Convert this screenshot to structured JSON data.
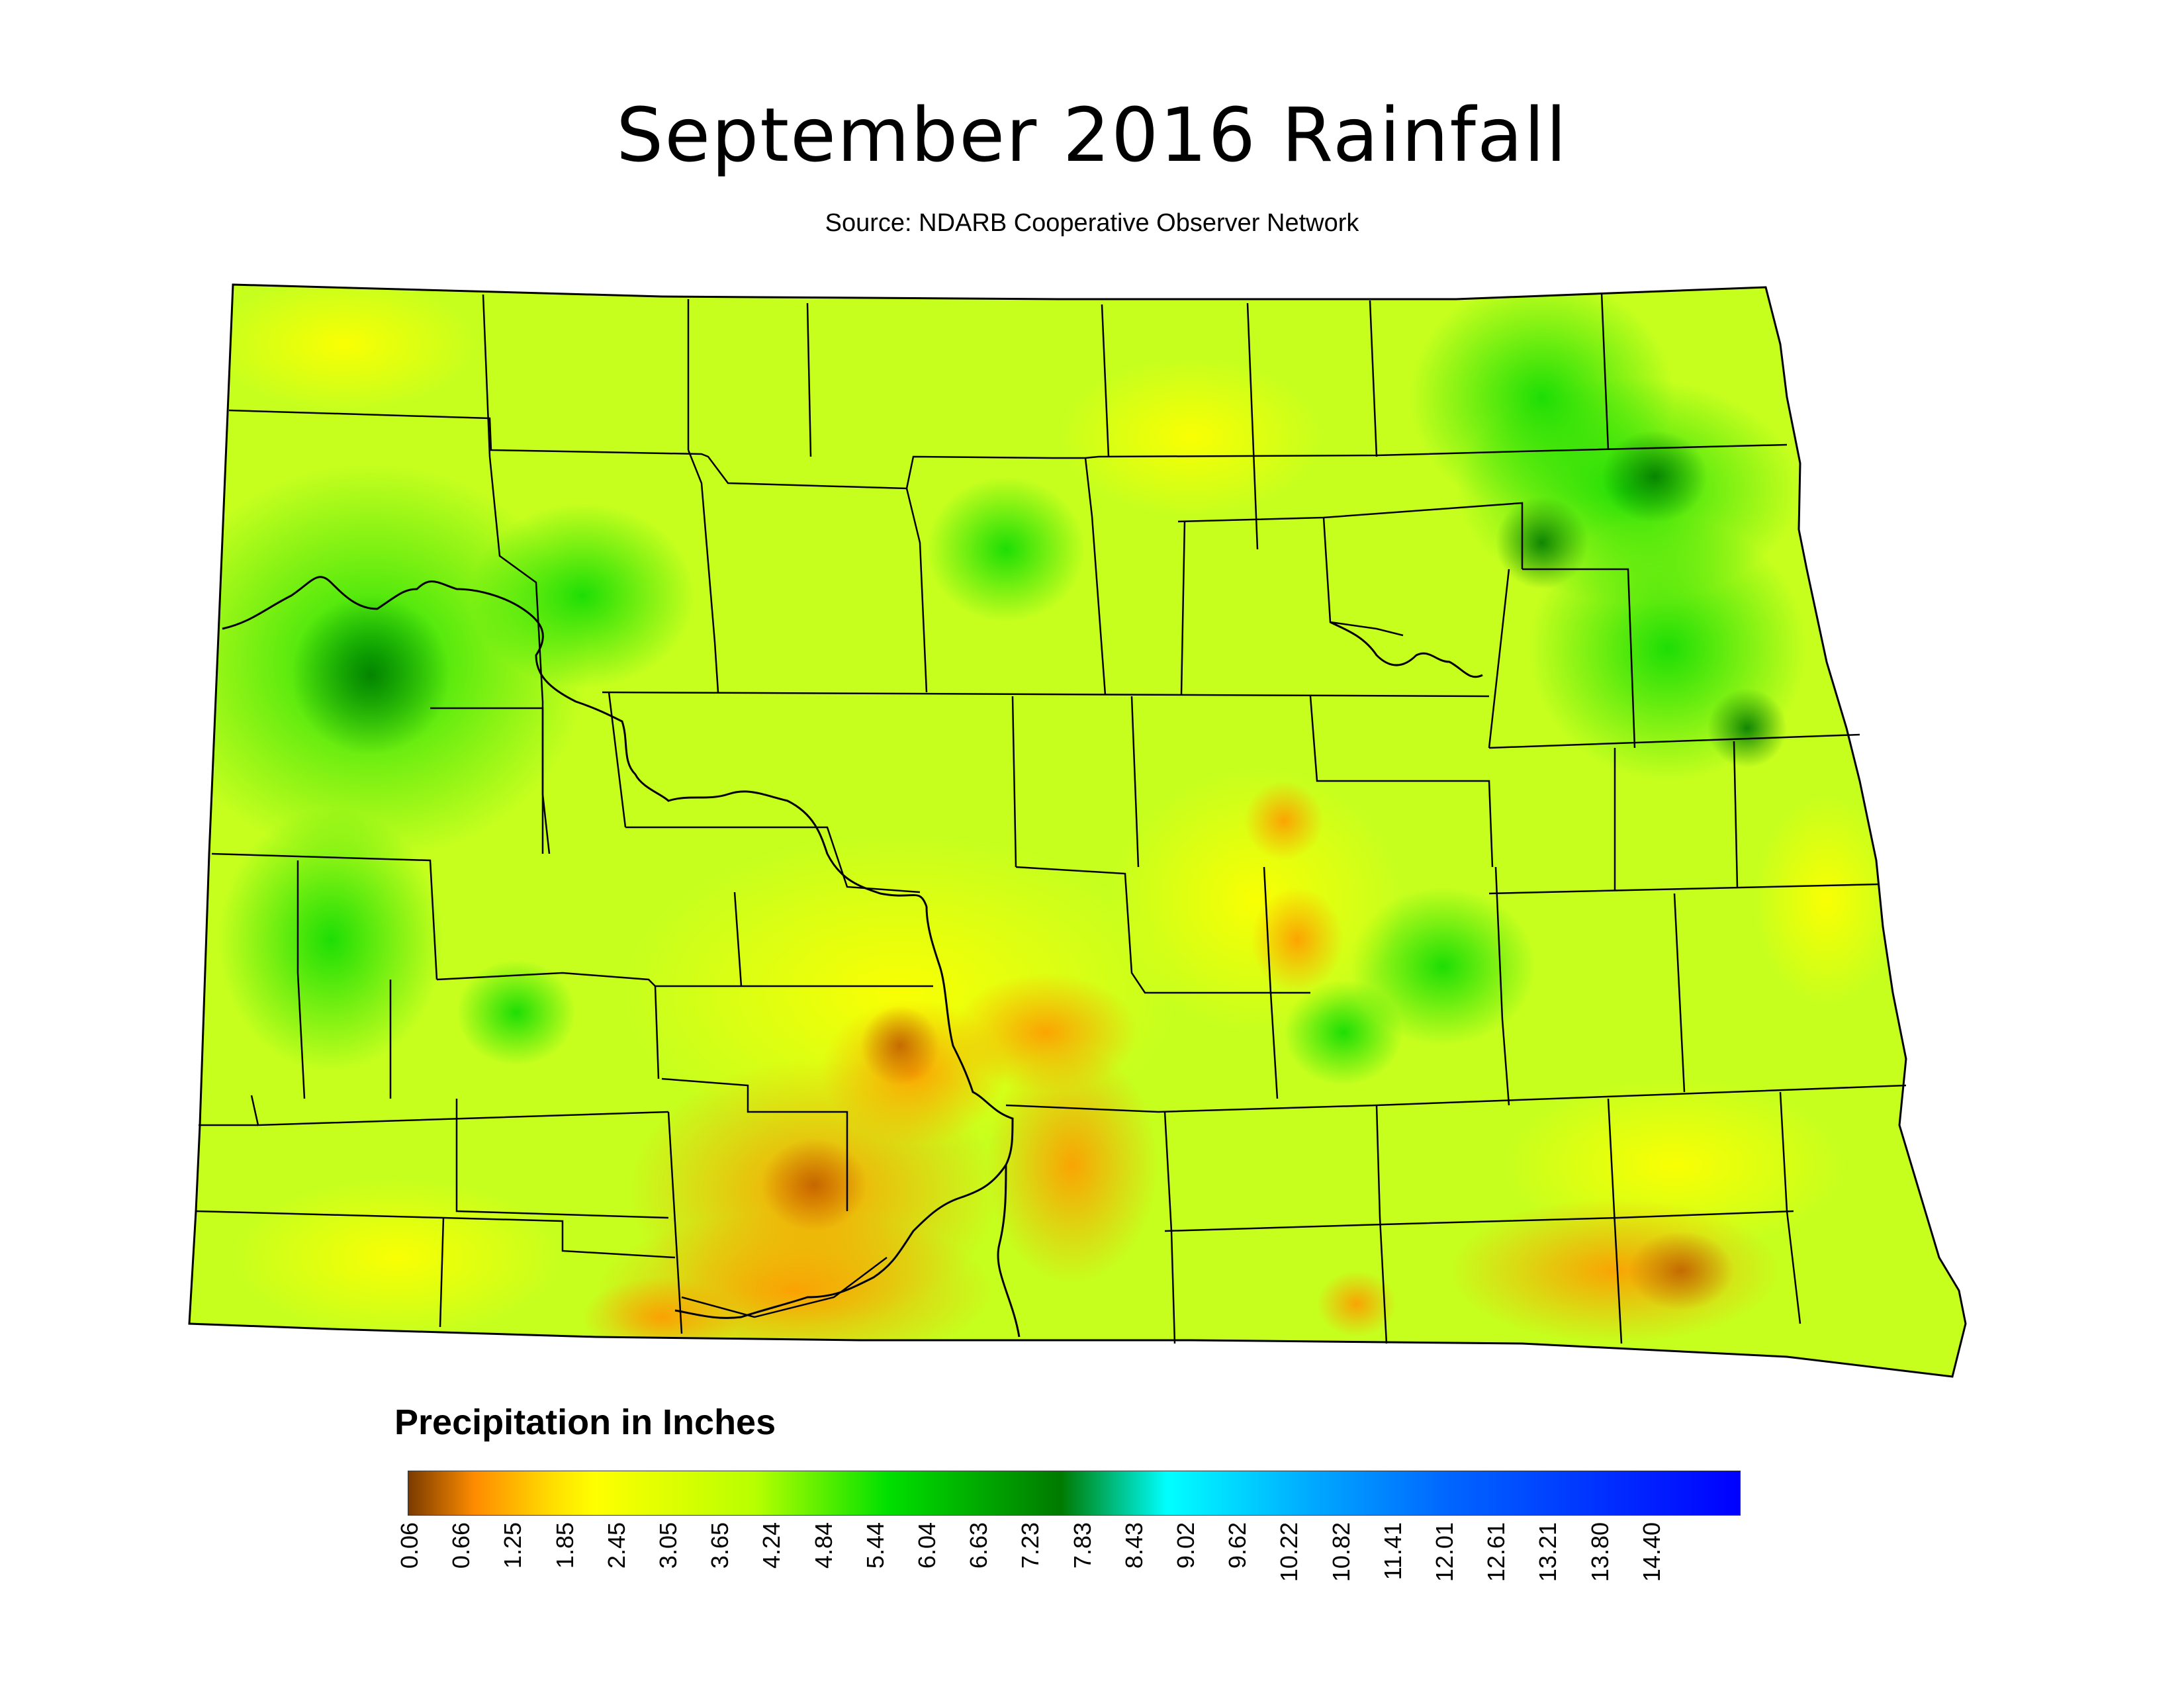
{
  "title": "September 2016 Rainfall",
  "subtitle": "Source: NDARB Cooperative Observer Network",
  "legend": {
    "title": "Precipitation in Inches",
    "ticks": [
      "0.06",
      "0.66",
      "1.25",
      "1.85",
      "2.45",
      "3.05",
      "3.65",
      "4.24",
      "4.84",
      "5.44",
      "6.04",
      "6.63",
      "7.23",
      "7.83",
      "8.43",
      "9.02",
      "9.62",
      "10.22",
      "10.82",
      "11.41",
      "12.01",
      "12.61",
      "13.21",
      "13.80",
      "14.40"
    ],
    "colors": {
      "low": "#7a3b00",
      "orange": "#ff8c00",
      "yellow": "#ffff00",
      "yellowgreen": "#b8ff00",
      "green": "#00e000",
      "darkgreen": "#007a00",
      "cyan": "#00ffff",
      "lightblue": "#00a8ff",
      "blue": "#0000ff"
    }
  },
  "map": {
    "region": "North Dakota",
    "base_color": "#c6ff1e",
    "outline_color": "#000000"
  }
}
